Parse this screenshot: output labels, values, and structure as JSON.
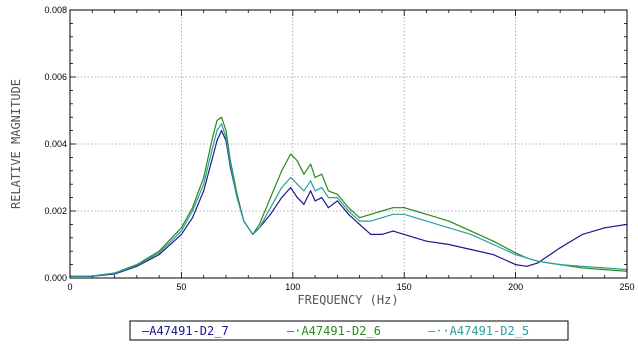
{
  "chart_data": {
    "type": "line",
    "xlabel": "FREQUENCY (Hz)",
    "ylabel": "RELATIVE MAGNITUDE",
    "xlim": [
      0,
      250
    ],
    "ylim": [
      0,
      0.008
    ],
    "x_ticks": [
      0,
      50,
      100,
      150,
      200,
      250
    ],
    "x_tick_labels": [
      "0",
      "50",
      "100",
      "150",
      "200",
      "250"
    ],
    "y_ticks": [
      0,
      0.002,
      0.004,
      0.006,
      0.008
    ],
    "y_tick_labels": [
      "0.000",
      "0.002",
      "0.004",
      "0.006",
      "0.008"
    ],
    "grid": true,
    "legend_position": "bottom-center",
    "series": [
      {
        "name": "A47491-D2_7",
        "legend_label": "—A47491-D2_7",
        "color": "#1a1a8c",
        "x": [
          0,
          10,
          20,
          30,
          40,
          50,
          55,
          60,
          64,
          66,
          68,
          70,
          72,
          75,
          78,
          82,
          85,
          90,
          95,
          99,
          102,
          105,
          108,
          110,
          113,
          116,
          120,
          125,
          130,
          135,
          140,
          145,
          150,
          155,
          160,
          170,
          180,
          190,
          200,
          205,
          210,
          220,
          230,
          240,
          250
        ],
        "y": [
          5e-05,
          5e-05,
          0.00012,
          0.00035,
          0.0007,
          0.0013,
          0.0018,
          0.0026,
          0.0036,
          0.0041,
          0.0044,
          0.0041,
          0.0033,
          0.0024,
          0.0017,
          0.0013,
          0.0015,
          0.0019,
          0.0024,
          0.0027,
          0.0024,
          0.0022,
          0.0026,
          0.0023,
          0.0024,
          0.0021,
          0.0023,
          0.0019,
          0.0016,
          0.0013,
          0.0013,
          0.0014,
          0.0013,
          0.0012,
          0.0011,
          0.001,
          0.00085,
          0.0007,
          0.0004,
          0.00035,
          0.00045,
          0.0009,
          0.0013,
          0.0015,
          0.0016
        ]
      },
      {
        "name": "A47491-D2_6",
        "legend_label": "—·A47491-D2_6",
        "color": "#2a8a1e",
        "x": [
          0,
          10,
          20,
          30,
          40,
          50,
          55,
          60,
          64,
          66,
          68,
          70,
          72,
          75,
          78,
          82,
          85,
          90,
          95,
          99,
          102,
          105,
          108,
          110,
          113,
          116,
          120,
          125,
          130,
          135,
          140,
          145,
          150,
          155,
          160,
          170,
          180,
          190,
          200,
          205,
          210,
          220,
          230,
          240,
          250
        ],
        "y": [
          5e-05,
          6e-05,
          0.00015,
          0.0004,
          0.0008,
          0.0015,
          0.0021,
          0.003,
          0.0042,
          0.0047,
          0.0048,
          0.0044,
          0.0035,
          0.0025,
          0.0017,
          0.0013,
          0.0016,
          0.0024,
          0.0032,
          0.0037,
          0.0035,
          0.0031,
          0.0034,
          0.003,
          0.0031,
          0.0026,
          0.0025,
          0.0021,
          0.0018,
          0.0019,
          0.002,
          0.0021,
          0.0021,
          0.002,
          0.0019,
          0.0017,
          0.0014,
          0.0011,
          0.00075,
          0.0006,
          0.0005,
          0.0004,
          0.0003,
          0.00025,
          0.0002
        ]
      },
      {
        "name": "A47491-D2_5",
        "legend_label": "—··A47491-D2_5",
        "color": "#2aa0a0",
        "x": [
          0,
          10,
          20,
          30,
          40,
          50,
          55,
          60,
          64,
          66,
          68,
          70,
          72,
          75,
          78,
          82,
          85,
          90,
          95,
          99,
          102,
          105,
          108,
          110,
          113,
          116,
          120,
          125,
          130,
          135,
          140,
          145,
          150,
          155,
          160,
          170,
          180,
          190,
          200,
          205,
          210,
          220,
          230,
          240,
          250
        ],
        "y": [
          5e-05,
          6e-05,
          0.00014,
          0.00038,
          0.00075,
          0.0014,
          0.002,
          0.0028,
          0.0039,
          0.0044,
          0.0046,
          0.0042,
          0.0034,
          0.0024,
          0.0017,
          0.0013,
          0.0015,
          0.0021,
          0.0027,
          0.003,
          0.0028,
          0.0026,
          0.0029,
          0.0026,
          0.0027,
          0.0024,
          0.0024,
          0.002,
          0.0017,
          0.0017,
          0.0018,
          0.0019,
          0.0019,
          0.0018,
          0.0017,
          0.0015,
          0.0013,
          0.001,
          0.0007,
          0.0006,
          0.0005,
          0.0004,
          0.00035,
          0.0003,
          0.00025
        ]
      }
    ]
  }
}
